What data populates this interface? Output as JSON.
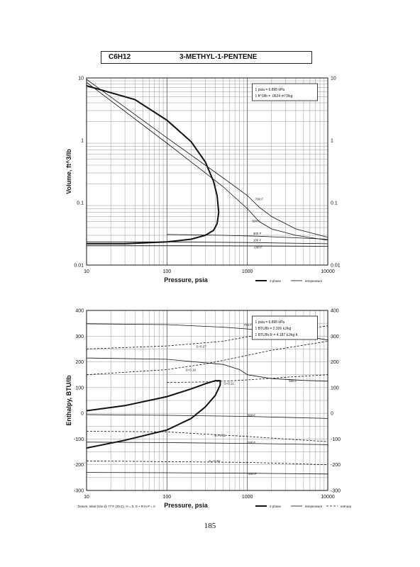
{
  "header": {
    "formula": "C6H12",
    "compound": "3-METHYL-1-PENTENE"
  },
  "page_number": "185",
  "chart_data": [
    {
      "type": "line",
      "xscale": "log",
      "yscale": "log",
      "xlim": [
        10,
        10000
      ],
      "ylim": [
        0.01,
        10
      ],
      "xlabel": "Pressure,  psia",
      "ylabel": "Volume, ft^3/lb",
      "x_ticks": [
        "10",
        "100",
        "1000",
        "10000"
      ],
      "y_ticks": [
        "10",
        "1",
        "0.1",
        "0.01"
      ],
      "grid": true,
      "conversion_box": [
        "1 psia = 6.895 kPa",
        "1 ft^3/lb = .0624 m^3/kg"
      ],
      "legend": [
        "2 phase",
        "temperature"
      ],
      "series": [
        {
          "name": "2 phase",
          "kind": "envelope",
          "x": [
            10,
            30,
            100,
            200,
            300,
            380,
            420,
            440,
            420,
            380,
            300,
            200,
            100,
            40,
            10
          ],
          "y": [
            0.022,
            0.022,
            0.0235,
            0.026,
            0.03,
            0.036,
            0.046,
            0.07,
            0.13,
            0.22,
            0.45,
            0.95,
            2.1,
            4.5,
            7.5
          ]
        },
        {
          "name": "700 F",
          "x": [
            10,
            100,
            500,
            1000,
            1400,
            2000,
            4000,
            10000
          ],
          "y": [
            9.5,
            1.1,
            0.25,
            0.13,
            0.085,
            0.06,
            0.038,
            0.028
          ]
        },
        {
          "name": "500 F",
          "x": [
            10,
            100,
            500,
            1000,
            1400,
            2000,
            4000,
            10000
          ],
          "y": [
            8.5,
            0.9,
            0.18,
            0.08,
            0.05,
            0.038,
            0.03,
            0.025
          ]
        },
        {
          "name": "300 F",
          "x": [
            100,
            500,
            1400,
            5000,
            10000
          ],
          "y": [
            0.031,
            0.03,
            0.029,
            0.027,
            0.026
          ]
        },
        {
          "name": "100 F",
          "x": [
            10,
            100,
            1000,
            10000
          ],
          "y": [
            0.0235,
            0.0235,
            0.023,
            0.022
          ]
        },
        {
          "name": "-100 F",
          "x": [
            10,
            100,
            1000,
            10000
          ],
          "y": [
            0.0205,
            0.0205,
            0.0203,
            0.02
          ]
        }
      ],
      "isotherm_labels": [
        "700 F",
        "500 F",
        "300 F",
        "100 F",
        "-100 F"
      ]
    },
    {
      "type": "line",
      "xscale": "log",
      "yscale": "linear",
      "xlim": [
        10,
        10000
      ],
      "ylim": [
        -300,
        400
      ],
      "xlabel": "Pressure,  psia",
      "ylabel": "Enthalpy, BTU/lb",
      "x_ticks": [
        "10",
        "100",
        "1000",
        "10000"
      ],
      "y_ticks": [
        "400",
        "300",
        "200",
        "100",
        "0",
        "-100",
        "-200",
        "-300"
      ],
      "grid": true,
      "conversion_box": [
        "1 psia = 6.895 kPa",
        "1 BTU/lb = 2.326 kJ/kg",
        "1 BTU/lb R = 4.187 kJ/kg K"
      ],
      "legend": [
        "2 phase",
        "temperature",
        "entropy"
      ],
      "footnote": "Datum: Ideal Gas @ 77 F (25 C),  H = 0,  S + R ln P = 0",
      "series": [
        {
          "name": "2 phase",
          "kind": "envelope",
          "x": [
            10,
            30,
            100,
            200,
            300,
            400,
            460,
            460,
            400,
            300,
            200,
            100,
            30,
            10
          ],
          "y": [
            10,
            30,
            65,
            95,
            115,
            127,
            127,
            110,
            70,
            25,
            -20,
            -65,
            -105,
            -135
          ]
        },
        {
          "name": "700 F",
          "x": [
            10,
            100,
            500,
            1000,
            2000,
            5000,
            10000
          ],
          "y": [
            348,
            345,
            335,
            328,
            318,
            300,
            285
          ]
        },
        {
          "name": "500 F",
          "x": [
            10,
            100,
            500,
            800,
            1000,
            2000,
            5000,
            10000
          ],
          "y": [
            215,
            210,
            190,
            170,
            150,
            135,
            128,
            125
          ]
        },
        {
          "name": "300 F",
          "x": [
            10,
            100,
            1000,
            10000
          ],
          "y": [
            -5,
            -8,
            -12,
            -20
          ]
        },
        {
          "name": "100 F",
          "x": [
            10,
            100,
            1000,
            10000
          ],
          "y": [
            -112,
            -114,
            -117,
            -122
          ]
        },
        {
          "name": "-100 F",
          "x": [
            10,
            100,
            1000,
            10000
          ],
          "y": [
            -230,
            -231,
            -233,
            -236
          ]
        },
        {
          "name": "S=0.27",
          "kind": "entropy",
          "x": [
            10,
            100,
            500,
            1000,
            3000,
            10000
          ],
          "y": [
            250,
            262,
            280,
            298,
            318,
            340
          ]
        },
        {
          "name": "S=0.19",
          "kind": "entropy",
          "x": [
            10,
            100,
            300,
            700,
            2000,
            10000
          ],
          "y": [
            150,
            170,
            192,
            215,
            245,
            280
          ]
        },
        {
          "name": "S=0.11",
          "kind": "entropy",
          "x": [
            100,
            300,
            500,
            1000,
            3000,
            10000
          ],
          "y": [
            120,
            122,
            125,
            130,
            140,
            150
          ]
        },
        {
          "name": "S=-0.11",
          "kind": "entropy",
          "x": [
            10,
            100,
            500,
            1000,
            3000,
            10000
          ],
          "y": [
            -70,
            -72,
            -85,
            -90,
            -100,
            -110
          ]
        },
        {
          "name": "S=-0.35",
          "kind": "entropy",
          "x": [
            10,
            100,
            500,
            1000,
            3000,
            10000
          ],
          "y": [
            -185,
            -188,
            -190,
            -191,
            -195,
            -200
          ]
        }
      ],
      "isotherm_labels": [
        "700 F",
        "500 F",
        "300 F",
        "100 F",
        "-100 F"
      ],
      "entropy_labels": [
        "S=0.27",
        "S=0.19",
        "S=0.11",
        "S=-0.11",
        "S=-0.35"
      ]
    }
  ]
}
